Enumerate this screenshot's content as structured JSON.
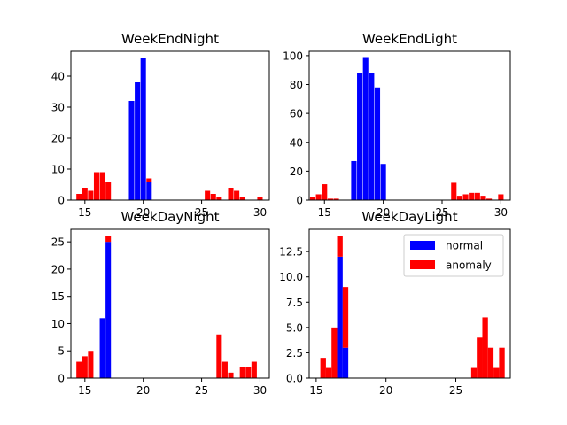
{
  "legend": {
    "items": [
      {
        "label": "normal",
        "color": "#0000ff"
      },
      {
        "label": "anomaly",
        "color": "#ff0000"
      }
    ]
  },
  "chart_data": [
    {
      "type": "bar",
      "stacked": true,
      "title": "WeekEndNight",
      "xlim": [
        13.8,
        30.8
      ],
      "ylim": [
        0,
        48
      ],
      "xticks": [
        15,
        20,
        25,
        30
      ],
      "yticks": [
        0,
        10,
        20,
        30,
        40
      ],
      "bin_width": 0.46,
      "bins": [
        {
          "x": 14.5,
          "normal": 0,
          "anomaly": 2
        },
        {
          "x": 15.0,
          "normal": 0,
          "anomaly": 4
        },
        {
          "x": 15.5,
          "normal": 0,
          "anomaly": 3
        },
        {
          "x": 16.0,
          "normal": 0,
          "anomaly": 9
        },
        {
          "x": 16.5,
          "normal": 0,
          "anomaly": 9
        },
        {
          "x": 17.0,
          "normal": 0,
          "anomaly": 6
        },
        {
          "x": 19.0,
          "normal": 32,
          "anomaly": 0
        },
        {
          "x": 19.5,
          "normal": 38,
          "anomaly": 0
        },
        {
          "x": 20.0,
          "normal": 46,
          "anomaly": 0
        },
        {
          "x": 20.5,
          "normal": 6,
          "anomaly": 1
        },
        {
          "x": 25.5,
          "normal": 0,
          "anomaly": 3
        },
        {
          "x": 26.0,
          "normal": 0,
          "anomaly": 2
        },
        {
          "x": 26.5,
          "normal": 0,
          "anomaly": 1
        },
        {
          "x": 27.5,
          "normal": 0,
          "anomaly": 4
        },
        {
          "x": 28.0,
          "normal": 0,
          "anomaly": 3
        },
        {
          "x": 28.5,
          "normal": 0,
          "anomaly": 1
        },
        {
          "x": 30.0,
          "normal": 0,
          "anomaly": 1
        }
      ]
    },
    {
      "type": "bar",
      "stacked": true,
      "title": "WeekEndLight",
      "xlim": [
        13.7,
        30.8
      ],
      "ylim": [
        0,
        103
      ],
      "xticks": [
        15,
        20,
        25,
        30
      ],
      "yticks": [
        0,
        20,
        40,
        60,
        80,
        100
      ],
      "bin_width": 0.46,
      "bins": [
        {
          "x": 14.0,
          "normal": 0,
          "anomaly": 2
        },
        {
          "x": 14.5,
          "normal": 0,
          "anomaly": 4
        },
        {
          "x": 15.0,
          "normal": 0,
          "anomaly": 11
        },
        {
          "x": 15.5,
          "normal": 0,
          "anomaly": 1
        },
        {
          "x": 16.0,
          "normal": 0,
          "anomaly": 1
        },
        {
          "x": 17.5,
          "normal": 27,
          "anomaly": 0
        },
        {
          "x": 18.0,
          "normal": 88,
          "anomaly": 0
        },
        {
          "x": 18.5,
          "normal": 99,
          "anomaly": 0
        },
        {
          "x": 19.0,
          "normal": 88,
          "anomaly": 0
        },
        {
          "x": 19.5,
          "normal": 78,
          "anomaly": 0
        },
        {
          "x": 20.0,
          "normal": 25,
          "anomaly": 0
        },
        {
          "x": 26.0,
          "normal": 0,
          "anomaly": 12
        },
        {
          "x": 26.5,
          "normal": 0,
          "anomaly": 3
        },
        {
          "x": 27.0,
          "normal": 0,
          "anomaly": 4
        },
        {
          "x": 27.5,
          "normal": 0,
          "anomaly": 5
        },
        {
          "x": 28.0,
          "normal": 0,
          "anomaly": 5
        },
        {
          "x": 28.5,
          "normal": 0,
          "anomaly": 3
        },
        {
          "x": 29.0,
          "normal": 0,
          "anomaly": 1
        },
        {
          "x": 30.0,
          "normal": 0,
          "anomaly": 4
        }
      ]
    },
    {
      "type": "bar",
      "stacked": true,
      "title": "WeekDayNight",
      "xlim": [
        13.8,
        30.8
      ],
      "ylim": [
        0,
        27.3
      ],
      "xticks": [
        15,
        20,
        25,
        30
      ],
      "yticks": [
        0,
        5,
        10,
        15,
        20,
        25
      ],
      "bin_width": 0.46,
      "bins": [
        {
          "x": 14.5,
          "normal": 0,
          "anomaly": 3
        },
        {
          "x": 15.0,
          "normal": 0,
          "anomaly": 4
        },
        {
          "x": 15.5,
          "normal": 0,
          "anomaly": 5
        },
        {
          "x": 16.5,
          "normal": 11,
          "anomaly": 0
        },
        {
          "x": 17.0,
          "normal": 25,
          "anomaly": 1
        },
        {
          "x": 26.5,
          "normal": 0,
          "anomaly": 8
        },
        {
          "x": 27.0,
          "normal": 0,
          "anomaly": 3
        },
        {
          "x": 27.5,
          "normal": 0,
          "anomaly": 1
        },
        {
          "x": 28.5,
          "normal": 0,
          "anomaly": 2
        },
        {
          "x": 29.0,
          "normal": 0,
          "anomaly": 2
        },
        {
          "x": 29.5,
          "normal": 0,
          "anomaly": 3
        }
      ]
    },
    {
      "type": "bar",
      "stacked": true,
      "title": "WeekDayLight",
      "xlim": [
        14.5,
        28.9
      ],
      "ylim": [
        0,
        14.7
      ],
      "xticks": [
        15,
        20,
        25
      ],
      "yticks": [
        0.0,
        2.5,
        5.0,
        7.5,
        10.0,
        12.5
      ],
      "ytick_labels": [
        "0.0",
        "2.5",
        "5.0",
        "7.5",
        "10.0",
        "12.5"
      ],
      "bin_width": 0.4,
      "bins": [
        {
          "x": 15.5,
          "normal": 0,
          "anomaly": 2
        },
        {
          "x": 15.9,
          "normal": 0,
          "anomaly": 1
        },
        {
          "x": 16.3,
          "normal": 0,
          "anomaly": 5
        },
        {
          "x": 16.7,
          "normal": 12,
          "anomaly": 2
        },
        {
          "x": 17.1,
          "normal": 3,
          "anomaly": 6
        },
        {
          "x": 26.3,
          "normal": 0,
          "anomaly": 1
        },
        {
          "x": 26.7,
          "normal": 0,
          "anomaly": 4
        },
        {
          "x": 27.1,
          "normal": 0,
          "anomaly": 6
        },
        {
          "x": 27.5,
          "normal": 0,
          "anomaly": 3
        },
        {
          "x": 27.9,
          "normal": 0,
          "anomaly": 1
        },
        {
          "x": 28.3,
          "normal": 0,
          "anomaly": 3
        }
      ]
    }
  ]
}
